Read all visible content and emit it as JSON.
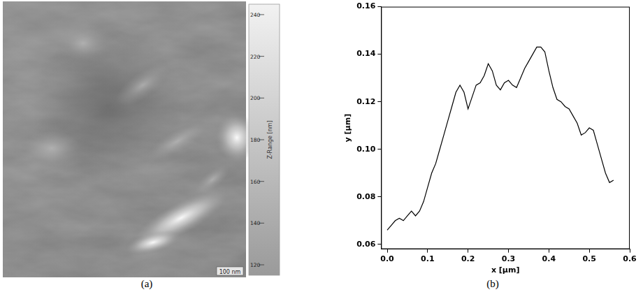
{
  "image_panel": {
    "label": "(a)",
    "scale_bar": "100 nm",
    "colorbar": {
      "title": "Z-Range [nm]",
      "range": [
        115,
        245
      ],
      "ticks": [
        120,
        140,
        160,
        180,
        200,
        220,
        240
      ]
    }
  },
  "chart_panel_label": "(b)",
  "chart_data": {
    "type": "line",
    "x_label": "x [µm]",
    "y_label": "y [µm]",
    "x": [
      0.0,
      0.01,
      0.02,
      0.03,
      0.04,
      0.05,
      0.06,
      0.07,
      0.08,
      0.09,
      0.1,
      0.11,
      0.12,
      0.13,
      0.14,
      0.15,
      0.16,
      0.17,
      0.18,
      0.19,
      0.2,
      0.21,
      0.22,
      0.23,
      0.24,
      0.25,
      0.26,
      0.27,
      0.28,
      0.29,
      0.3,
      0.31,
      0.32,
      0.33,
      0.34,
      0.35,
      0.36,
      0.37,
      0.38,
      0.39,
      0.4,
      0.41,
      0.42,
      0.43,
      0.44,
      0.45,
      0.46,
      0.47,
      0.48,
      0.49,
      0.5,
      0.51,
      0.52,
      0.53,
      0.54,
      0.55,
      0.56
    ],
    "values": [
      0.066,
      0.068,
      0.07,
      0.071,
      0.07,
      0.072,
      0.074,
      0.072,
      0.074,
      0.078,
      0.084,
      0.09,
      0.094,
      0.1,
      0.106,
      0.112,
      0.118,
      0.124,
      0.127,
      0.124,
      0.117,
      0.122,
      0.127,
      0.128,
      0.131,
      0.136,
      0.133,
      0.127,
      0.125,
      0.128,
      0.129,
      0.127,
      0.126,
      0.13,
      0.134,
      0.137,
      0.14,
      0.143,
      0.143,
      0.141,
      0.133,
      0.126,
      0.121,
      0.12,
      0.118,
      0.117,
      0.114,
      0.111,
      0.106,
      0.107,
      0.109,
      0.108,
      0.102,
      0.096,
      0.09,
      0.086,
      0.087
    ],
    "color": "#000000",
    "xlim": [
      -0.015,
      0.6
    ],
    "xticks": [
      {
        "value": 0,
        "label": "0.0"
      },
      0.1,
      0.2,
      0.3,
      0.4,
      0.5,
      0.6
    ],
    "ylim": [
      0.058,
      0.16
    ],
    "yticks": [
      0.06,
      0.08,
      {
        "value": 0.1,
        "label": "0.10"
      },
      0.12,
      0.14,
      0.16
    ],
    "grid": false
  }
}
